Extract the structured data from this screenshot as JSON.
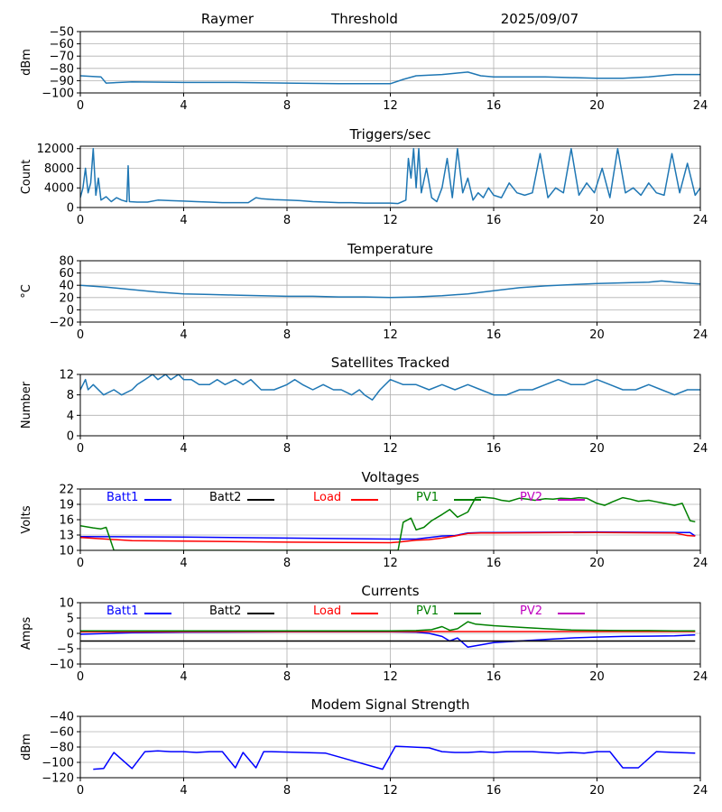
{
  "header": {
    "station": "Raymer",
    "mode": "Threshold",
    "date": "2025/09/07"
  },
  "x_ticks": [
    0,
    4,
    8,
    12,
    16,
    20,
    24
  ],
  "legend_labels": [
    "Batt1",
    "Batt2",
    "Load",
    "PV1",
    "PV2"
  ],
  "chart_data": [
    {
      "type": "line",
      "title": "",
      "ylabel": "dBm",
      "ylim": [
        -100,
        -50
      ],
      "yticks": [
        -50,
        -60,
        -70,
        -80,
        -90,
        -100
      ],
      "xlim": [
        0,
        24
      ],
      "grid": true,
      "series": [
        {
          "color": "#1f77b4",
          "x": [
            0,
            0.8,
            1,
            2,
            4,
            6,
            8,
            10,
            12,
            12.5,
            13,
            14,
            14.5,
            15,
            15.5,
            16,
            18,
            20,
            21,
            22,
            23,
            24
          ],
          "y": [
            -86,
            -87,
            -92,
            -91,
            -91.5,
            -91.5,
            -92,
            -92.5,
            -92.5,
            -89,
            -86,
            -85,
            -84,
            -83,
            -86,
            -87,
            -87,
            -88,
            -88,
            -87,
            -85,
            -85
          ]
        }
      ]
    },
    {
      "type": "line",
      "title": "Triggers/sec",
      "ylabel": "Count",
      "ylim": [
        0,
        12500
      ],
      "yticks": [
        0,
        4000,
        8000,
        12000
      ],
      "xlim": [
        0,
        24
      ],
      "grid": true,
      "series": [
        {
          "color": "#1f77b4",
          "x": [
            0,
            0.1,
            0.2,
            0.3,
            0.4,
            0.5,
            0.6,
            0.7,
            0.8,
            1,
            1.2,
            1.4,
            1.6,
            1.8,
            1.85,
            1.9,
            2.2,
            2.6,
            3,
            3.5,
            4,
            4.5,
            5,
            5.5,
            6,
            6.5,
            6.8,
            7,
            7.5,
            8,
            8.5,
            9,
            9.5,
            10,
            10.5,
            11,
            11.5,
            12,
            12.3,
            12.6,
            12.7,
            12.8,
            12.9,
            13,
            13.1,
            13.2,
            13.4,
            13.6,
            13.8,
            14,
            14.2,
            14.4,
            14.6,
            14.8,
            15,
            15.2,
            15.4,
            15.6,
            15.8,
            16,
            16.3,
            16.6,
            16.9,
            17.2,
            17.5,
            17.8,
            18.1,
            18.4,
            18.7,
            19,
            19.3,
            19.6,
            19.9,
            20.2,
            20.5,
            20.8,
            21.1,
            21.4,
            21.7,
            22,
            22.3,
            22.6,
            22.9,
            23.2,
            23.5,
            23.8,
            24
          ],
          "y": [
            2000,
            4000,
            8000,
            3000,
            5000,
            12000,
            2500,
            6000,
            1500,
            2200,
            1200,
            2000,
            1500,
            1200,
            8500,
            1200,
            1100,
            1100,
            1500,
            1400,
            1300,
            1200,
            1100,
            1000,
            1000,
            1000,
            2000,
            1800,
            1600,
            1500,
            1400,
            1200,
            1100,
            1000,
            1000,
            900,
            900,
            900,
            800,
            1500,
            10000,
            6000,
            12000,
            4000,
            12000,
            3000,
            8000,
            2000,
            1200,
            4000,
            10000,
            2000,
            12000,
            3000,
            6000,
            1500,
            3000,
            2000,
            4000,
            2500,
            2000,
            5000,
            3000,
            2500,
            3000,
            11000,
            2000,
            4000,
            3000,
            12000,
            2500,
            5000,
            3000,
            8000,
            2000,
            12000,
            3000,
            4000,
            2500,
            5000,
            3000,
            2500,
            11000,
            3000,
            9000,
            2500,
            4000
          ]
        }
      ]
    },
    {
      "type": "line",
      "title": "Temperature",
      "ylabel": "°C",
      "ylim": [
        -20,
        80
      ],
      "yticks": [
        -20,
        0,
        20,
        40,
        60,
        80
      ],
      "xlim": [
        0,
        24
      ],
      "grid": true,
      "series": [
        {
          "color": "#1f77b4",
          "x": [
            0,
            1,
            2,
            3,
            4,
            5,
            6,
            7,
            8,
            9,
            10,
            11,
            12,
            13,
            14,
            15,
            16,
            17,
            18,
            19,
            20,
            21,
            22,
            22.5,
            23,
            24
          ],
          "y": [
            40,
            37,
            33,
            29,
            26,
            25,
            24,
            23,
            22,
            22,
            21,
            21,
            20,
            21,
            23,
            26,
            31,
            36,
            39,
            41,
            43,
            44,
            45,
            47,
            45,
            42
          ]
        }
      ]
    },
    {
      "type": "line",
      "title": "Satellites Tracked",
      "ylabel": "Number",
      "ylim": [
        0,
        12
      ],
      "yticks": [
        0,
        4,
        8,
        12
      ],
      "xlim": [
        0,
        24
      ],
      "grid": true,
      "series": [
        {
          "color": "#1f77b4",
          "x": [
            0,
            0.2,
            0.3,
            0.5,
            0.9,
            1.3,
            1.6,
            2,
            2.2,
            2.5,
            2.8,
            3,
            3.3,
            3.5,
            3.8,
            4,
            4.3,
            4.6,
            5,
            5.3,
            5.6,
            6,
            6.3,
            6.6,
            7,
            7.5,
            8,
            8.3,
            8.6,
            9,
            9.4,
            9.8,
            10.1,
            10.5,
            10.8,
            11,
            11.3,
            11.6,
            12,
            12.5,
            13,
            13.5,
            14,
            14.5,
            15,
            15.5,
            16,
            16.5,
            17,
            17.5,
            18,
            18.5,
            19,
            19.5,
            20,
            20.5,
            21,
            21.5,
            22,
            22.5,
            23,
            23.5,
            24
          ],
          "y": [
            9,
            11,
            9,
            10,
            8,
            9,
            8,
            9,
            10,
            11,
            12,
            11,
            12,
            11,
            12,
            11,
            11,
            10,
            10,
            11,
            10,
            11,
            10,
            11,
            9,
            9,
            10,
            11,
            10,
            9,
            10,
            9,
            9,
            8,
            9,
            8,
            7,
            9,
            11,
            10,
            10,
            9,
            10,
            9,
            10,
            9,
            8,
            8,
            9,
            9,
            10,
            11,
            10,
            10,
            11,
            10,
            9,
            9,
            10,
            9,
            8,
            9,
            9
          ]
        }
      ]
    },
    {
      "type": "line",
      "title": "Voltages",
      "ylabel": "Volts",
      "ylim": [
        10,
        22
      ],
      "yticks": [
        10,
        13,
        16,
        19,
        22
      ],
      "xlim": [
        0,
        24
      ],
      "grid": true,
      "series": [
        {
          "name": "Batt1",
          "color": "#0000ff",
          "x": [
            0,
            4,
            8,
            12,
            13,
            14,
            14.5,
            15,
            15.5,
            16,
            20,
            23.6,
            23.8
          ],
          "y": [
            12.7,
            12.6,
            12.4,
            12.2,
            12.2,
            12.8,
            12.9,
            13.4,
            13.5,
            13.5,
            13.6,
            13.5,
            12.8
          ]
        },
        {
          "name": "Batt2",
          "color": "#000000",
          "x": [],
          "y": []
        },
        {
          "name": "Load",
          "color": "#ff0000",
          "x": [
            0,
            1,
            2,
            4,
            8,
            12,
            12.3,
            13,
            13.5,
            14,
            14.5,
            15,
            15.5,
            16,
            20,
            23,
            23.5,
            23.8
          ],
          "y": [
            12.5,
            12.2,
            11.9,
            11.8,
            11.6,
            11.5,
            11.6,
            12,
            12.1,
            12.4,
            12.8,
            13.3,
            13.4,
            13.4,
            13.5,
            13.4,
            12.9,
            12.8
          ]
        },
        {
          "name": "PV1",
          "color": "#008000",
          "x": [
            0,
            0.5,
            0.8,
            1,
            1.3,
            12.3,
            12.5,
            12.8,
            13,
            13.3,
            13.6,
            14,
            14.3,
            14.6,
            15,
            15.3,
            15.6,
            16,
            16.3,
            16.6,
            17,
            17.3,
            17.6,
            18,
            18.3,
            18.6,
            19,
            19.3,
            19.6,
            20,
            20.3,
            20.6,
            21,
            21.3,
            21.6,
            22,
            22.3,
            22.6,
            23,
            23.3,
            23.6,
            23.8
          ],
          "y": [
            14.8,
            14.4,
            14.2,
            14.5,
            10,
            10,
            15.5,
            16.3,
            14,
            14.5,
            15.8,
            17,
            18,
            16.5,
            17.5,
            20.3,
            20.4,
            20.2,
            19.8,
            19.6,
            20.2,
            20,
            19.8,
            20.1,
            20,
            20.2,
            20.1,
            20.3,
            20.2,
            19.2,
            18.8,
            19.5,
            20.3,
            20,
            19.6,
            19.8,
            19.5,
            19.2,
            18.8,
            19.2,
            15.8,
            15.6
          ]
        },
        {
          "name": "PV2",
          "color": "#bf00bf",
          "x": [],
          "y": []
        }
      ]
    },
    {
      "type": "line",
      "title": "Currents",
      "ylabel": "Amps",
      "ylim": [
        -10,
        10
      ],
      "yticks": [
        -10,
        -5,
        0,
        5,
        10
      ],
      "xlim": [
        0,
        24
      ],
      "grid": true,
      "series": [
        {
          "name": "Batt1",
          "color": "#0000ff",
          "x": [
            0,
            2,
            4,
            8,
            12,
            13,
            13.5,
            14,
            14.3,
            14.6,
            15,
            16,
            17,
            18,
            19,
            20,
            21,
            22,
            23,
            23.8
          ],
          "y": [
            -0.3,
            0.2,
            0.4,
            0.5,
            0.5,
            0.4,
            0,
            -1,
            -2.5,
            -1.5,
            -4.5,
            -3,
            -2.5,
            -2,
            -1.5,
            -1.2,
            -1,
            -0.9,
            -0.8,
            -0.5
          ]
        },
        {
          "name": "Batt2",
          "color": "#000000",
          "x": [
            0,
            4,
            8,
            12,
            14,
            15,
            16,
            20,
            23.8
          ],
          "y": [
            -2.5,
            -2.5,
            -2.5,
            -2.5,
            -2.5,
            -2.5,
            -2.5,
            -2.5,
            -2.5
          ]
        },
        {
          "name": "Load",
          "color": "#ff0000",
          "x": [
            0,
            4,
            8,
            12,
            16,
            20,
            23.8
          ],
          "y": [
            0.5,
            0.6,
            0.6,
            0.6,
            0.6,
            0.6,
            0.6
          ]
        },
        {
          "name": "PV1",
          "color": "#008000",
          "x": [
            0,
            4,
            8,
            12,
            13,
            13.6,
            14,
            14.3,
            14.6,
            15,
            15.3,
            16,
            17,
            18,
            19,
            20,
            21,
            22,
            23,
            23.8
          ],
          "y": [
            0.8,
            0.8,
            0.8,
            0.8,
            0.9,
            1.2,
            2.2,
            1,
            1.5,
            3.8,
            3,
            2.5,
            2,
            1.5,
            1.1,
            1,
            0.9,
            0.9,
            0.8,
            0.8
          ]
        },
        {
          "name": "PV2",
          "color": "#bf00bf",
          "x": [],
          "y": []
        }
      ]
    },
    {
      "type": "line",
      "title": "Modem Signal Strength",
      "ylabel": "dBm",
      "ylim": [
        -120,
        -40
      ],
      "yticks": [
        -40,
        -60,
        -80,
        -100,
        -120
      ],
      "xlim": [
        0,
        24
      ],
      "grid": true,
      "series": [
        {
          "color": "#0000ff",
          "x": [
            0.5,
            0.9,
            1.3,
            2,
            2.5,
            3,
            3.5,
            4,
            4.5,
            5,
            5.5,
            6,
            6.3,
            6.8,
            7.1,
            7.4,
            9.5,
            11.7,
            12.2,
            13.5,
            14,
            14.5,
            15,
            15.5,
            16,
            16.5,
            17,
            17.5,
            18,
            18.5,
            19,
            19.5,
            20,
            20.5,
            21,
            21.6,
            22.3,
            23,
            23.8
          ],
          "y": [
            -109,
            -108,
            -87,
            -108,
            -86,
            -85,
            -86,
            -86,
            -87,
            -86,
            -86,
            -107,
            -87,
            -107,
            -86,
            -86,
            -88,
            -109,
            -79,
            -81,
            -86,
            -87,
            -87,
            -86,
            -87,
            -86,
            -86,
            -86,
            -87,
            -88,
            -87,
            -88,
            -86,
            -86,
            -107,
            -107,
            -86,
            -87,
            -88
          ]
        }
      ]
    }
  ]
}
